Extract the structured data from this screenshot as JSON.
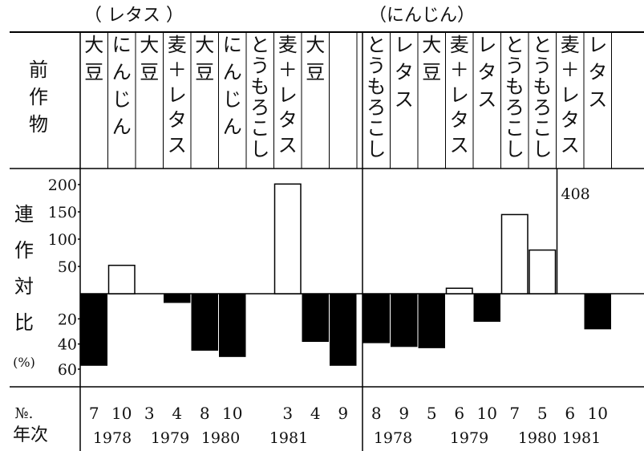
{
  "chart_data": {
    "type": "bar",
    "groups": [
      {
        "title": "（ レタス ）",
        "columns": [
          {
            "prev_crop": "大豆",
            "no": "7",
            "value": -57
          },
          {
            "prev_crop": "にんじん",
            "no": "10",
            "value": 52
          },
          {
            "prev_crop": "大豆",
            "no": "3",
            "value": 0
          },
          {
            "prev_crop": "麦＋レタス",
            "no": "4",
            "value": -7
          },
          {
            "prev_crop": "大豆",
            "no": "8",
            "value": -45
          },
          {
            "prev_crop": "にんじん",
            "no": "10",
            "value": -50
          },
          {
            "prev_crop": "とうもろこし",
            "no": "",
            "value": null
          },
          {
            "prev_crop": "麦＋レタス",
            "no": "3",
            "value": 201
          },
          {
            "prev_crop": "大豆",
            "no": "4",
            "value": -38
          },
          {
            "prev_crop": "",
            "no": "9",
            "value": -57
          }
        ],
        "years": [
          "1978",
          "1979",
          "1980",
          "1981"
        ]
      },
      {
        "title": "（にんじん）",
        "columns": [
          {
            "prev_crop": "とうもろこし",
            "no": "8",
            "value": -39
          },
          {
            "prev_crop": "レタス",
            "no": "9",
            "value": -42
          },
          {
            "prev_crop": "大豆",
            "no": "5",
            "value": -43
          },
          {
            "prev_crop": "麦＋レタス",
            "no": "6",
            "value": 10
          },
          {
            "prev_crop": "レタス",
            "no": "10",
            "value": -22
          },
          {
            "prev_crop": "とうもろこし",
            "no": "7",
            "value": 145
          },
          {
            "prev_crop": "とうもろこし",
            "no": "5",
            "value": 80
          },
          {
            "prev_crop": "麦＋レタス",
            "no": "6",
            "value": 408,
            "label": "408"
          },
          {
            "prev_crop": "レタス",
            "no": "10",
            "value": -28
          }
        ],
        "years": [
          "1978",
          "1979",
          "1980",
          "1981"
        ]
      }
    ],
    "row_labels": {
      "prev_crop": "前作物",
      "ratio": "連作対比",
      "percent": "(%)",
      "no": "№.",
      "year": "年次"
    },
    "y_ticks_up": [
      "200",
      "150",
      "100",
      "50"
    ],
    "y_ticks_down": [
      "20",
      "40",
      "60"
    ],
    "ylim_up": [
      0,
      200
    ],
    "ylim_down": [
      0,
      60
    ],
    "colors": {
      "positive": "#ffffff",
      "negative": "#000000",
      "line": "#000000"
    }
  }
}
